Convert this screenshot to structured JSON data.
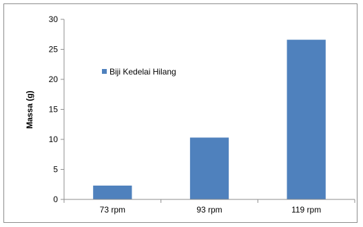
{
  "chart_data": {
    "type": "bar",
    "categories": [
      "73 rpm",
      "93 rpm",
      "119 rpm"
    ],
    "series": [
      {
        "name": "Biji Kedelai Hilang",
        "values": [
          2.3,
          10.3,
          26.6
        ],
        "color": "#4f81bd"
      }
    ],
    "title": "",
    "xlabel": "",
    "ylabel": "Massa (g)",
    "ylim": [
      0,
      30
    ],
    "yticks": [
      0,
      5,
      10,
      15,
      20,
      25,
      30
    ],
    "grid": false,
    "legend_position": "inside-top-left"
  }
}
